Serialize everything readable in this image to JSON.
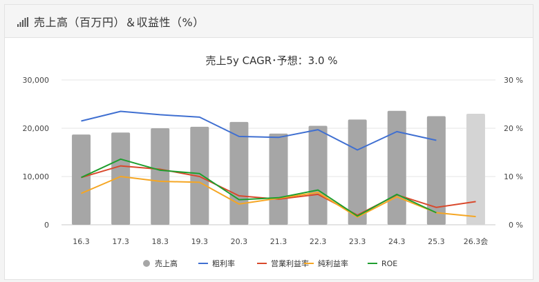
{
  "header": {
    "title": "売上高（百万円）＆収益性（%）",
    "icon": "bar-chart-icon"
  },
  "chart_data": {
    "type": "bar",
    "title": "売上5y CAGR･予想：3.0 %",
    "categories": [
      "16.3",
      "17.3",
      "18.3",
      "19.3",
      "20.3",
      "21.3",
      "22.3",
      "23.3",
      "24.3",
      "25.3",
      "26.3会"
    ],
    "y_left": {
      "ticks": [
        "0",
        "10,000",
        "20,000",
        "30,000"
      ],
      "ylim": [
        0,
        30000
      ]
    },
    "y_right": {
      "ticks": [
        "0 %",
        "10 %",
        "20 %",
        "30 %"
      ],
      "ylim": [
        0,
        30
      ]
    },
    "grid": true,
    "legend_position": "bottom",
    "bars": {
      "name": "売上高",
      "values": [
        18700,
        19100,
        20000,
        20300,
        21300,
        18900,
        20500,
        21800,
        23600,
        22500,
        23000
      ],
      "color": "#a6a6a6",
      "forecast_color": "#d4d4d4",
      "forecast_index": 10
    },
    "series": [
      {
        "name": "粗利率",
        "color": "#3f6fd1",
        "values": [
          21.5,
          23.5,
          22.8,
          22.3,
          18.3,
          18.1,
          19.7,
          15.5,
          19.3,
          17.5,
          null
        ]
      },
      {
        "name": "営業利益率",
        "color": "#d9482b",
        "values": [
          9.8,
          12.2,
          11.5,
          10.0,
          6.0,
          5.3,
          6.3,
          2.0,
          6.2,
          3.6,
          4.8
        ]
      },
      {
        "name": "純利益率",
        "color": "#f5a623",
        "values": [
          6.5,
          10.0,
          9.0,
          8.8,
          4.3,
          5.5,
          6.7,
          1.6,
          5.8,
          2.5,
          1.7
        ]
      },
      {
        "name": "ROE",
        "color": "#1e9e2e",
        "values": [
          9.8,
          13.6,
          11.3,
          10.6,
          5.2,
          5.6,
          7.2,
          1.8,
          6.3,
          2.5,
          null
        ]
      }
    ]
  }
}
